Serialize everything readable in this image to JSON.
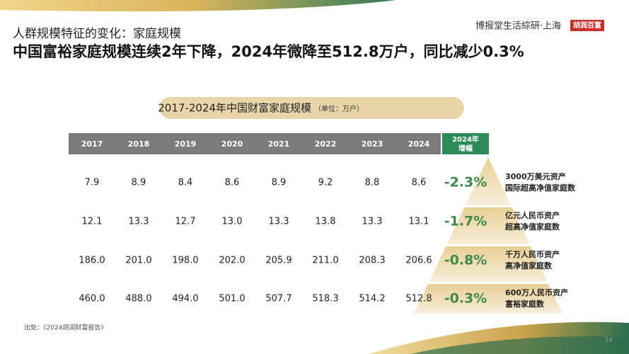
{
  "header": {
    "subtitle": "人群规模特征的变化：家庭规模",
    "title": "中国富裕家庭规模连续2年下降，2024年微降至512.8万户，同比减少0.3%",
    "brand": "博报堂生活綜研·上海",
    "logo": "胡润百富"
  },
  "table": {
    "title": "2017-2024年中国财富家庭规模",
    "unit": "（单位：万户）",
    "columns": [
      "2017",
      "2018",
      "2019",
      "2020",
      "2021",
      "2022",
      "2023",
      "2024"
    ],
    "change_header": [
      "2024年",
      "增幅"
    ],
    "rows": [
      {
        "values": [
          "7.9",
          "8.9",
          "8.4",
          "8.6",
          "8.9",
          "9.2",
          "8.8",
          "8.6"
        ],
        "change": "-2.3%",
        "label": [
          "3000万美元资产",
          "国际超高净值家庭数"
        ]
      },
      {
        "values": [
          "12.1",
          "13.3",
          "12.7",
          "13.0",
          "13.3",
          "13.8",
          "13.3",
          "13.1"
        ],
        "change": "-1.7%",
        "label": [
          "亿元人民币资产",
          "超高净值家庭数"
        ]
      },
      {
        "values": [
          "186.0",
          "201.0",
          "198.0",
          "202.0",
          "205.9",
          "211.0",
          "208.3",
          "206.6"
        ],
        "change": "-0.8%",
        "label": [
          "千万人民币资产",
          "高净值家庭数"
        ]
      },
      {
        "values": [
          "460.0",
          "488.0",
          "494.0",
          "501.0",
          "507.7",
          "518.3",
          "514.2",
          "512.8"
        ],
        "change": "-0.3%",
        "label": [
          "600万人民币资产",
          "富裕家庭数"
        ]
      }
    ]
  },
  "footer": {
    "source": "出处：《2024胡润财富报告》",
    "page": "14"
  }
}
